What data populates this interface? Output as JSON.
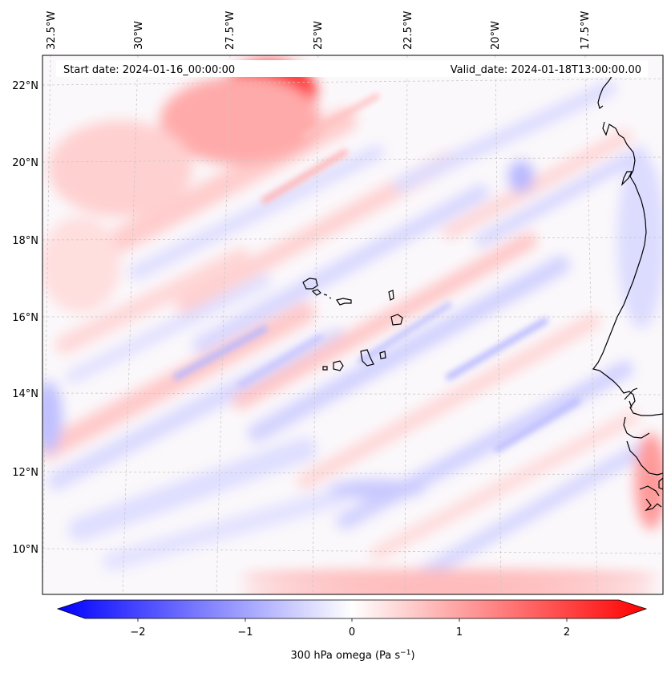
{
  "map": {
    "start_label": "Start date: 2024-01-16_00:00:00",
    "valid_label": "Valid_date: 2024-01-18T13:00:00.00",
    "lon_labels": [
      "32.5°W",
      "30°W",
      "27.5°W",
      "25°W",
      "22.5°W",
      "20°W",
      "17.5°W"
    ],
    "lat_labels": [
      "22°N",
      "20°N",
      "18°N",
      "16°N",
      "14°N",
      "12°N",
      "10°N"
    ],
    "colorbar": {
      "ticks": [
        "−2",
        "−1",
        "0",
        "1",
        "2"
      ],
      "label": "300 hPa omega (Pa s",
      "label_exp": "−1",
      "label_end": ")",
      "min_color": "#0000ff",
      "mid_color": "#ffffff",
      "max_color": "#ff0000"
    },
    "field_variable": "300 hPa omega"
  }
}
